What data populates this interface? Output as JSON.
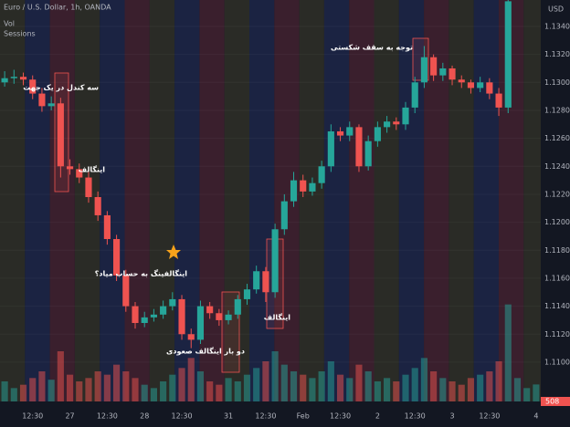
{
  "chart_data": {
    "type": "candlestick",
    "title": "Euro / U.S. Dollar, 1h, OANDA",
    "indicators": [
      "Vol",
      "Sessions"
    ],
    "currency": "USD",
    "categories": [
      null,
      null,
      null,
      "12:30",
      null,
      null,
      null,
      "27",
      null,
      null,
      null,
      "12:30",
      null,
      null,
      null,
      "28",
      null,
      null,
      null,
      "12:30",
      null,
      null,
      null,
      null,
      "31",
      null,
      null,
      null,
      "12:30",
      null,
      null,
      null,
      "Feb",
      null,
      null,
      null,
      "12:30",
      null,
      null,
      null,
      "2",
      null,
      null,
      null,
      "12:30",
      null,
      null,
      null,
      "3",
      null,
      null,
      null,
      "12:30",
      null,
      null,
      null,
      null,
      "4"
    ],
    "open": [
      1.13,
      1.1303,
      1.1304,
      1.1302,
      1.1292,
      1.1283,
      1.1285,
      1.124,
      1.1238,
      1.1232,
      1.1218,
      1.1205,
      1.1188,
      1.1162,
      1.114,
      1.1128,
      1.1132,
      1.1134,
      1.114,
      1.1145,
      1.112,
      1.1116,
      1.114,
      1.1135,
      1.113,
      1.1134,
      1.1145,
      1.1152,
      1.1165,
      1.115,
      1.1195,
      1.1215,
      1.123,
      1.1222,
      1.1228,
      1.124,
      1.1265,
      1.1262,
      1.1268,
      1.124,
      1.1258,
      1.1268,
      1.1272,
      1.127,
      1.1282,
      1.13,
      1.1318,
      1.1305,
      1.131,
      1.1302,
      1.13,
      1.1296,
      1.13,
      1.1292,
      1.1282,
      null,
      null,
      null
    ],
    "high": [
      1.1308,
      1.1309,
      1.1307,
      1.1305,
      1.1296,
      1.129,
      1.1289,
      1.1245,
      1.1242,
      1.1236,
      1.1222,
      1.1208,
      1.1191,
      1.1166,
      1.1143,
      1.1136,
      1.1138,
      1.1144,
      1.115,
      1.1148,
      1.1124,
      1.1144,
      1.1143,
      1.1138,
      1.1137,
      1.1148,
      1.1156,
      1.1169,
      1.1168,
      1.1199,
      1.122,
      1.1236,
      1.1234,
      1.1232,
      1.1244,
      1.127,
      1.1268,
      1.1272,
      1.127,
      1.1262,
      1.1272,
      1.1276,
      1.1275,
      1.1286,
      1.1304,
      1.1326,
      1.132,
      1.1314,
      1.1312,
      1.1305,
      1.1302,
      1.1304,
      1.1303,
      1.1296,
      1.1362,
      null,
      null,
      null
    ],
    "low": [
      1.1297,
      1.1299,
      1.1298,
      1.1288,
      1.1279,
      1.128,
      1.1232,
      1.1234,
      1.1228,
      1.1214,
      1.1201,
      1.1184,
      1.1158,
      1.1136,
      1.1124,
      1.1125,
      1.1129,
      1.1131,
      1.1137,
      1.1116,
      1.111,
      1.1113,
      1.1131,
      1.1126,
      1.1127,
      1.1131,
      1.1141,
      1.1149,
      1.1143,
      1.1146,
      1.1191,
      1.1211,
      1.1218,
      1.1219,
      1.1224,
      1.1236,
      1.1258,
      1.1258,
      1.1236,
      1.1237,
      1.1254,
      1.1264,
      1.1266,
      1.1266,
      1.1278,
      1.1296,
      1.1301,
      1.1301,
      1.1298,
      1.1296,
      1.1292,
      1.1293,
      1.1288,
      1.1276,
      1.1278,
      null,
      null,
      null
    ],
    "close": [
      1.1303,
      1.1304,
      1.1302,
      1.1292,
      1.1283,
      1.1285,
      1.124,
      1.1238,
      1.1232,
      1.1218,
      1.1205,
      1.1188,
      1.1162,
      1.114,
      1.1128,
      1.1132,
      1.1134,
      1.114,
      1.1145,
      1.112,
      1.1116,
      1.114,
      1.1135,
      1.113,
      1.1134,
      1.1145,
      1.1152,
      1.1165,
      1.115,
      1.1195,
      1.1215,
      1.123,
      1.1222,
      1.1228,
      1.124,
      1.1265,
      1.1262,
      1.1268,
      1.124,
      1.1258,
      1.1268,
      1.1272,
      1.127,
      1.1282,
      1.13,
      1.1318,
      1.1305,
      1.131,
      1.1302,
      1.13,
      1.1296,
      1.13,
      1.1292,
      1.1282,
      1.1358,
      null,
      null,
      null
    ],
    "volume": [
      600,
      400,
      500,
      700,
      900,
      650,
      1500,
      800,
      600,
      700,
      900,
      800,
      1100,
      900,
      700,
      500,
      400,
      600,
      800,
      1000,
      1300,
      900,
      600,
      500,
      700,
      600,
      800,
      1000,
      1200,
      1500,
      1100,
      900,
      800,
      700,
      900,
      1200,
      800,
      700,
      1100,
      900,
      600,
      700,
      600,
      800,
      1000,
      1300,
      900,
      700,
      600,
      500,
      700,
      800,
      900,
      1200,
      2900,
      700,
      400,
      508
    ],
    "up_color": "#26a69a",
    "down_color": "#ef5350",
    "vlim": [
      0,
      3000
    ],
    "ylim": [
      1.10719,
      1.13589
    ],
    "yticks": [
      {
        "value": 1.11,
        "label": "1.11000"
      },
      {
        "value": 1.112,
        "label": "1.11200"
      },
      {
        "value": 1.114,
        "label": "1.11400"
      },
      {
        "value": 1.116,
        "label": "1.11600"
      },
      {
        "value": 1.118,
        "label": "1.11800"
      },
      {
        "value": 1.12,
        "label": "1.12000"
      },
      {
        "value": 1.122,
        "label": "1.12200"
      },
      {
        "value": 1.124,
        "label": "1.12400"
      },
      {
        "value": 1.126,
        "label": "1.12600"
      },
      {
        "value": 1.128,
        "label": "1.12800"
      },
      {
        "value": 1.13,
        "label": "1.13000"
      },
      {
        "value": 1.132,
        "label": "1.13200"
      },
      {
        "value": 1.134,
        "label": "1.13400"
      }
    ],
    "annotations": [
      "سه کندل در یک جهت",
      "اینگالف",
      "اینگالفینگ به حساب میاد؟",
      "دو بار اینگالف صعودی",
      "اینگالف",
      "توجه به سقف شکستی"
    ]
  }
}
